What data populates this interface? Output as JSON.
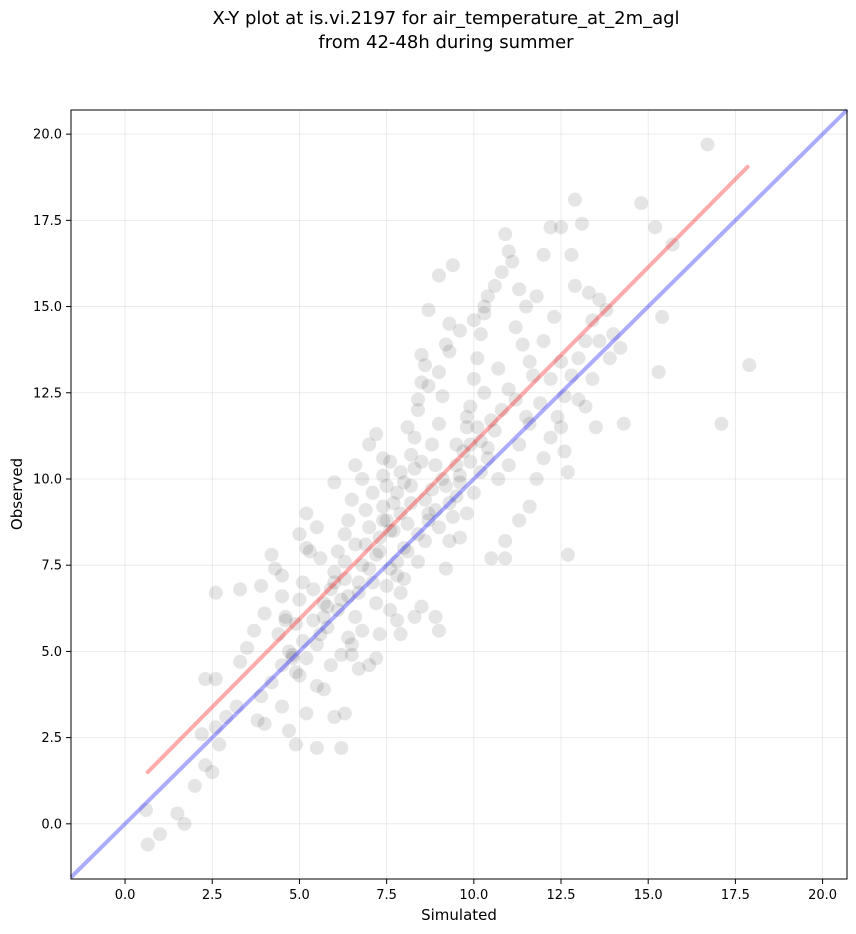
{
  "chart_data": {
    "type": "scatter",
    "title": [
      "X-Y plot at is.vi.2197 for air_temperature_at_2m_agl",
      "from 42-48h during summer"
    ],
    "xlabel": "Simulated",
    "ylabel": "Observed",
    "xlim": [
      -1.55,
      20.7
    ],
    "ylim": [
      -1.6,
      20.7
    ],
    "xticks": [
      0.0,
      2.5,
      5.0,
      7.5,
      10.0,
      12.5,
      15.0,
      17.5,
      20.0
    ],
    "xtick_labels": [
      "0.0",
      "2.5",
      "5.0",
      "7.5",
      "10.0",
      "12.5",
      "15.0",
      "17.5",
      "20.0"
    ],
    "yticks": [
      0.0,
      2.5,
      5.0,
      7.5,
      10.0,
      12.5,
      15.0,
      17.5,
      20.0
    ],
    "ytick_labels": [
      "0.0",
      "2.5",
      "5.0",
      "7.5",
      "10.0",
      "12.5",
      "15.0",
      "17.5",
      "20.0"
    ],
    "grid": true,
    "point_color": "#000000",
    "point_opacity": 0.1,
    "fit_line": {
      "color": "#ff0000",
      "opacity": 0.33,
      "x": [
        0.65,
        17.85
      ],
      "y": [
        1.5,
        19.05
      ]
    },
    "identity_line": {
      "color": "#0000ff",
      "opacity": 0.33,
      "x": [
        -1.55,
        20.7
      ],
      "y": [
        -1.55,
        20.7
      ]
    },
    "points": [
      [
        0.6,
        0.4
      ],
      [
        0.65,
        -0.6
      ],
      [
        1.0,
        -0.3
      ],
      [
        1.5,
        0.3
      ],
      [
        1.7,
        0.0
      ],
      [
        2.0,
        1.1
      ],
      [
        2.3,
        1.7
      ],
      [
        2.5,
        1.5
      ],
      [
        2.3,
        4.2
      ],
      [
        2.6,
        4.2
      ],
      [
        2.6,
        6.7
      ],
      [
        2.2,
        2.6
      ],
      [
        2.7,
        2.3
      ],
      [
        2.6,
        2.8
      ],
      [
        2.9,
        3.1
      ],
      [
        3.2,
        3.4
      ],
      [
        3.3,
        4.7
      ],
      [
        3.5,
        5.1
      ],
      [
        3.3,
        6.8
      ],
      [
        3.9,
        6.9
      ],
      [
        4.2,
        7.8
      ],
      [
        3.7,
        5.6
      ],
      [
        4.0,
        6.1
      ],
      [
        4.3,
        7.4
      ],
      [
        4.5,
        7.2
      ],
      [
        4.6,
        6.0
      ],
      [
        3.8,
        3.0
      ],
      [
        4.0,
        2.9
      ],
      [
        4.5,
        3.4
      ],
      [
        4.7,
        2.7
      ],
      [
        4.9,
        2.3
      ],
      [
        5.2,
        3.2
      ],
      [
        5.5,
        2.2
      ],
      [
        5.0,
        4.3
      ],
      [
        4.8,
        4.8
      ],
      [
        5.5,
        4.0
      ],
      [
        5.7,
        3.9
      ],
      [
        6.2,
        2.2
      ],
      [
        6.3,
        3.2
      ],
      [
        6.0,
        3.1
      ],
      [
        6.7,
        4.5
      ],
      [
        7.0,
        4.6
      ],
      [
        7.2,
        4.8
      ],
      [
        4.4,
        5.5
      ],
      [
        4.6,
        5.9
      ],
      [
        4.5,
        6.6
      ],
      [
        4.7,
        5.0
      ],
      [
        4.9,
        5.8
      ],
      [
        5.0,
        6.5
      ],
      [
        5.1,
        7.0
      ],
      [
        5.2,
        8.0
      ],
      [
        5.0,
        8.4
      ],
      [
        5.3,
        7.9
      ],
      [
        5.2,
        9.0
      ],
      [
        5.5,
        8.6
      ],
      [
        5.6,
        7.7
      ],
      [
        5.4,
        6.8
      ],
      [
        5.6,
        5.5
      ],
      [
        5.7,
        6.0
      ],
      [
        5.8,
        6.3
      ],
      [
        5.9,
        6.8
      ],
      [
        6.0,
        7.3
      ],
      [
        6.1,
        7.9
      ],
      [
        6.0,
        9.9
      ],
      [
        6.3,
        8.4
      ],
      [
        6.4,
        8.8
      ],
      [
        6.5,
        9.4
      ],
      [
        6.6,
        10.4
      ],
      [
        6.8,
        10.0
      ],
      [
        7.0,
        11.0
      ],
      [
        7.2,
        11.3
      ],
      [
        7.4,
        10.6
      ],
      [
        7.5,
        9.8
      ],
      [
        6.2,
        6.5
      ],
      [
        6.3,
        7.1
      ],
      [
        6.4,
        5.4
      ],
      [
        6.5,
        4.9
      ],
      [
        6.6,
        6.0
      ],
      [
        6.7,
        6.7
      ],
      [
        6.8,
        7.5
      ],
      [
        6.9,
        8.1
      ],
      [
        7.0,
        8.6
      ],
      [
        7.1,
        7.0
      ],
      [
        7.2,
        7.8
      ],
      [
        7.3,
        8.3
      ],
      [
        7.4,
        9.2
      ],
      [
        7.5,
        8.8
      ],
      [
        7.6,
        7.4
      ],
      [
        7.7,
        8.5
      ],
      [
        7.8,
        9.6
      ],
      [
        7.9,
        10.2
      ],
      [
        7.6,
        6.2
      ],
      [
        7.8,
        5.9
      ],
      [
        7.9,
        6.7
      ],
      [
        8.0,
        7.1
      ],
      [
        8.0,
        8.0
      ],
      [
        8.1,
        8.7
      ],
      [
        8.2,
        9.3
      ],
      [
        8.2,
        10.7
      ],
      [
        8.3,
        11.2
      ],
      [
        8.4,
        12.0
      ],
      [
        8.5,
        12.8
      ],
      [
        8.6,
        13.3
      ],
      [
        8.4,
        7.6
      ],
      [
        8.5,
        6.3
      ],
      [
        8.6,
        8.2
      ],
      [
        8.7,
        9.0
      ],
      [
        8.8,
        9.7
      ],
      [
        8.9,
        10.4
      ],
      [
        9.0,
        11.6
      ],
      [
        9.1,
        12.4
      ],
      [
        9.2,
        13.9
      ],
      [
        9.3,
        14.5
      ],
      [
        9.0,
        15.9
      ],
      [
        9.4,
        16.2
      ],
      [
        8.7,
        14.9
      ],
      [
        8.5,
        13.6
      ],
      [
        9.0,
        5.6
      ],
      [
        8.9,
        6.0
      ],
      [
        9.2,
        7.4
      ],
      [
        9.3,
        8.2
      ],
      [
        9.4,
        8.9
      ],
      [
        9.5,
        9.5
      ],
      [
        9.6,
        10.1
      ],
      [
        9.7,
        10.8
      ],
      [
        9.8,
        11.5
      ],
      [
        9.9,
        12.1
      ],
      [
        10.0,
        12.9
      ],
      [
        10.1,
        13.5
      ],
      [
        10.2,
        14.2
      ],
      [
        10.3,
        14.8
      ],
      [
        10.4,
        15.3
      ],
      [
        10.6,
        15.6
      ],
      [
        10.8,
        16.0
      ],
      [
        10.9,
        17.1
      ],
      [
        11.0,
        16.6
      ],
      [
        11.1,
        16.3
      ],
      [
        11.3,
        15.5
      ],
      [
        11.5,
        15.0
      ],
      [
        11.2,
        14.4
      ],
      [
        11.4,
        13.9
      ],
      [
        11.6,
        13.4
      ],
      [
        11.0,
        12.6
      ],
      [
        10.8,
        12.0
      ],
      [
        10.6,
        11.4
      ],
      [
        10.4,
        10.9
      ],
      [
        10.2,
        10.2
      ],
      [
        10.0,
        9.6
      ],
      [
        9.8,
        9.0
      ],
      [
        9.6,
        8.3
      ],
      [
        10.5,
        7.7
      ],
      [
        10.9,
        7.7
      ],
      [
        10.9,
        8.2
      ],
      [
        11.3,
        8.8
      ],
      [
        11.6,
        9.2
      ],
      [
        11.8,
        10.0
      ],
      [
        12.0,
        10.6
      ],
      [
        12.2,
        11.2
      ],
      [
        12.4,
        11.8
      ],
      [
        12.6,
        12.4
      ],
      [
        12.8,
        13.0
      ],
      [
        13.0,
        13.5
      ],
      [
        13.2,
        14.0
      ],
      [
        13.4,
        14.6
      ],
      [
        13.6,
        15.2
      ],
      [
        13.8,
        14.9
      ],
      [
        14.0,
        14.2
      ],
      [
        14.2,
        13.8
      ],
      [
        14.3,
        11.6
      ],
      [
        13.5,
        11.5
      ],
      [
        13.2,
        12.1
      ],
      [
        12.7,
        10.2
      ],
      [
        12.6,
        10.8
      ],
      [
        12.7,
        7.8
      ],
      [
        12.9,
        18.1
      ],
      [
        12.5,
        17.3
      ],
      [
        12.8,
        16.5
      ],
      [
        13.1,
        17.4
      ],
      [
        12.2,
        17.3
      ],
      [
        12.0,
        16.5
      ],
      [
        14.8,
        18.0
      ],
      [
        15.2,
        17.3
      ],
      [
        15.7,
        16.8
      ],
      [
        15.4,
        14.7
      ],
      [
        15.3,
        13.1
      ],
      [
        16.7,
        19.7
      ],
      [
        17.9,
        13.3
      ],
      [
        17.1,
        11.6
      ],
      [
        11.8,
        15.3
      ],
      [
        12.3,
        14.7
      ],
      [
        12.0,
        14.0
      ],
      [
        11.7,
        13.0
      ],
      [
        12.9,
        15.6
      ],
      [
        13.3,
        15.4
      ],
      [
        13.6,
        14.0
      ],
      [
        13.9,
        13.5
      ],
      [
        13.4,
        12.9
      ],
      [
        13.0,
        12.3
      ],
      [
        12.5,
        11.5
      ],
      [
        11.5,
        11.8
      ],
      [
        11.2,
        12.3
      ],
      [
        10.7,
        13.2
      ],
      [
        10.3,
        12.5
      ],
      [
        9.9,
        11.0
      ],
      [
        9.5,
        10.4
      ],
      [
        9.1,
        10.0
      ],
      [
        8.8,
        11.0
      ],
      [
        8.5,
        10.5
      ],
      [
        8.2,
        9.8
      ],
      [
        7.9,
        9.0
      ],
      [
        7.6,
        8.5
      ],
      [
        7.3,
        7.9
      ],
      [
        7.0,
        7.4
      ],
      [
        6.7,
        7.0
      ],
      [
        6.4,
        6.6
      ],
      [
        6.1,
        6.2
      ],
      [
        5.8,
        5.7
      ],
      [
        5.5,
        5.2
      ],
      [
        5.2,
        4.8
      ],
      [
        4.9,
        4.4
      ],
      [
        7.4,
        8.8
      ],
      [
        7.7,
        9.3
      ],
      [
        8.0,
        9.9
      ],
      [
        8.3,
        10.3
      ],
      [
        8.6,
        9.4
      ],
      [
        8.9,
        9.1
      ],
      [
        9.2,
        9.8
      ],
      [
        9.5,
        11.0
      ],
      [
        9.8,
        11.8
      ],
      [
        10.1,
        11.5
      ],
      [
        10.4,
        10.6
      ],
      [
        10.7,
        10.0
      ],
      [
        11.0,
        10.4
      ],
      [
        11.3,
        11.0
      ],
      [
        11.6,
        11.6
      ],
      [
        11.9,
        12.2
      ],
      [
        12.2,
        12.9
      ],
      [
        12.5,
        13.4
      ],
      [
        7.1,
        9.6
      ],
      [
        7.4,
        10.1
      ],
      [
        6.9,
        9.1
      ],
      [
        7.6,
        10.5
      ],
      [
        8.1,
        11.5
      ],
      [
        8.4,
        12.3
      ],
      [
        8.7,
        12.7
      ],
      [
        9.0,
        13.1
      ],
      [
        9.3,
        13.7
      ],
      [
        9.6,
        14.3
      ],
      [
        10.0,
        14.6
      ],
      [
        10.3,
        15.0
      ],
      [
        6.6,
        8.1
      ],
      [
        6.3,
        7.6
      ],
      [
        6.0,
        7.0
      ],
      [
        5.7,
        6.4
      ],
      [
        5.4,
        5.9
      ],
      [
        5.1,
        5.3
      ],
      [
        4.8,
        4.9
      ],
      [
        4.5,
        4.6
      ],
      [
        4.2,
        4.1
      ],
      [
        3.9,
        3.7
      ],
      [
        7.8,
        7.6
      ],
      [
        8.1,
        7.9
      ],
      [
        8.4,
        8.4
      ],
      [
        8.7,
        8.8
      ],
      [
        9.0,
        8.6
      ],
      [
        9.3,
        9.3
      ],
      [
        9.6,
        9.9
      ],
      [
        9.9,
        10.5
      ],
      [
        10.2,
        11.1
      ],
      [
        10.5,
        11.7
      ],
      [
        7.2,
        6.4
      ],
      [
        7.5,
        6.9
      ],
      [
        7.8,
        7.2
      ],
      [
        6.8,
        5.6
      ],
      [
        6.5,
        5.2
      ],
      [
        6.2,
        4.9
      ],
      [
        5.9,
        4.6
      ],
      [
        7.3,
        5.5
      ],
      [
        7.9,
        5.5
      ],
      [
        8.3,
        6.0
      ]
    ]
  }
}
